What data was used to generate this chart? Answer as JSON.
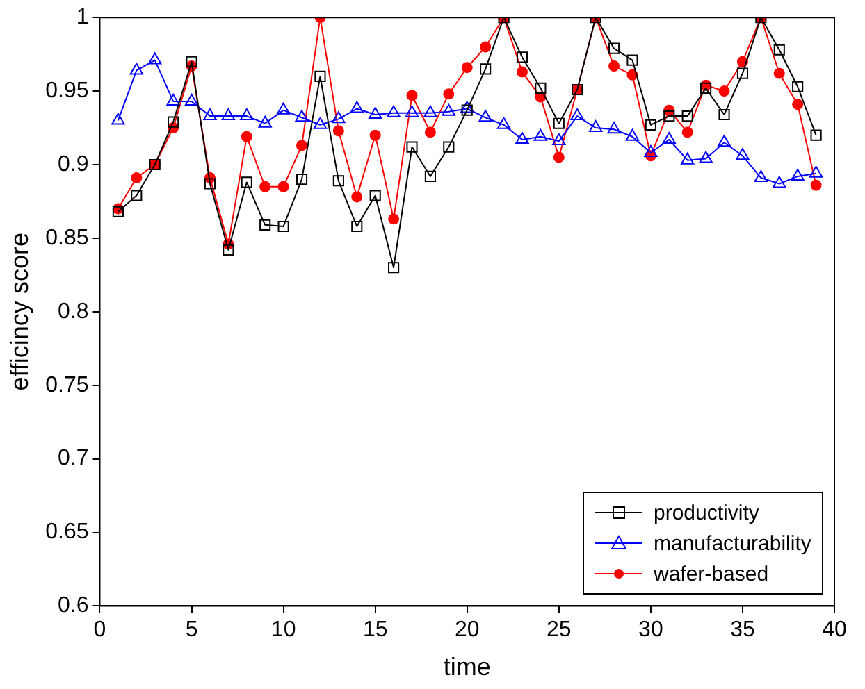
{
  "chart_data": {
    "type": "line",
    "xlabel": "time",
    "ylabel": "efficincy score",
    "x": [
      1,
      2,
      3,
      4,
      5,
      6,
      7,
      8,
      9,
      10,
      11,
      12,
      13,
      14,
      15,
      16,
      17,
      18,
      19,
      20,
      21,
      22,
      23,
      24,
      25,
      26,
      27,
      28,
      29,
      30,
      31,
      32,
      33,
      34,
      35,
      36,
      37,
      38,
      39
    ],
    "series": [
      {
        "name": "productivity",
        "color": "#000000",
        "marker": "square",
        "values": [
          0.868,
          0.879,
          0.9,
          0.929,
          0.97,
          0.887,
          0.842,
          0.888,
          0.859,
          0.858,
          0.89,
          0.96,
          0.889,
          0.858,
          0.879,
          0.83,
          0.912,
          0.892,
          0.912,
          0.937,
          0.965,
          1.0,
          0.973,
          0.952,
          0.928,
          0.951,
          1.0,
          0.979,
          0.971,
          0.927,
          0.933,
          0.933,
          0.952,
          0.934,
          0.962,
          1.0,
          0.978,
          0.953,
          0.92
        ]
      },
      {
        "name": "manufacturability",
        "color": "#0000ff",
        "marker": "triangle",
        "values": [
          0.93,
          0.964,
          0.971,
          0.943,
          0.943,
          0.933,
          0.933,
          0.933,
          0.928,
          0.937,
          0.932,
          0.927,
          0.931,
          0.938,
          0.934,
          0.935,
          0.935,
          0.935,
          0.936,
          0.938,
          0.932,
          0.927,
          0.917,
          0.919,
          0.916,
          0.933,
          0.925,
          0.924,
          0.919,
          0.908,
          0.917,
          0.903,
          0.904,
          0.915,
          0.906,
          0.891,
          0.887,
          0.892,
          0.894
        ]
      },
      {
        "name": "wafer-based",
        "color": "#ff0000",
        "marker": "circle",
        "values": [
          0.87,
          0.891,
          0.9,
          0.925,
          0.967,
          0.891,
          0.846,
          0.919,
          0.885,
          0.885,
          0.913,
          1.0,
          0.923,
          0.878,
          0.92,
          0.863,
          0.947,
          0.922,
          0.948,
          0.966,
          0.98,
          1.0,
          0.963,
          0.946,
          0.905,
          0.951,
          1.0,
          0.967,
          0.961,
          0.906,
          0.937,
          0.922,
          0.954,
          0.95,
          0.97,
          1.0,
          0.962,
          0.941,
          0.886
        ]
      }
    ],
    "xlim": [
      0,
      40
    ],
    "xticks": [
      0,
      5,
      10,
      15,
      20,
      25,
      30,
      35,
      40
    ],
    "ylim": [
      0.6,
      1
    ],
    "yticks": [
      0.6,
      0.65,
      0.7,
      0.75,
      0.8,
      0.85,
      0.9,
      0.95,
      1
    ],
    "grid": false,
    "legend": "bottom right"
  }
}
